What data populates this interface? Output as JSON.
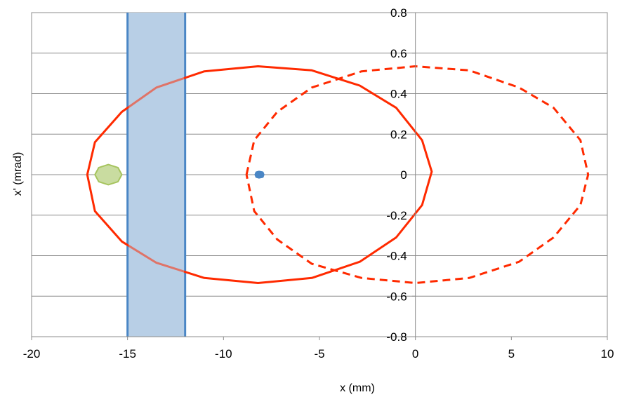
{
  "chart_data": {
    "type": "scatter",
    "xlabel": "x (mm)",
    "ylabel": "x' (mrad)",
    "xlim": [
      -20,
      10
    ],
    "ylim": [
      -0.8,
      0.8
    ],
    "x_ticks": [
      -20,
      -15,
      -10,
      -5,
      0,
      5,
      10
    ],
    "x_tick_labels": [
      "-20",
      "-15",
      "-10",
      "-5",
      "0",
      "5",
      "10"
    ],
    "y_ticks": [
      0.8,
      0.6,
      0.4,
      0.2,
      0,
      -0.2,
      -0.4,
      -0.6,
      -0.8
    ],
    "y_tick_labels": [
      "0.8",
      "0.6",
      "0.4",
      "0.2",
      "0",
      "-0.2",
      "-0.4",
      "-0.6",
      "-0.8"
    ],
    "grid": true,
    "shaded_band": {
      "x_range": [
        -15,
        -12
      ],
      "fill": "#b9cfe6",
      "edge": "#4a86c5"
    },
    "series": [
      {
        "style": "solid",
        "color": "#ff2a00",
        "points": [
          [
            -17.1,
            0.0
          ],
          [
            -16.7,
            0.16
          ],
          [
            -15.3,
            0.31
          ],
          [
            -13.5,
            0.43
          ],
          [
            -11.0,
            0.51
          ],
          [
            -8.2,
            0.535
          ],
          [
            -5.4,
            0.515
          ],
          [
            -2.9,
            0.44
          ],
          [
            -1.0,
            0.33
          ],
          [
            0.35,
            0.17
          ],
          [
            0.85,
            0.015
          ],
          [
            0.35,
            -0.15
          ],
          [
            -1.0,
            -0.31
          ],
          [
            -2.9,
            -0.43
          ],
          [
            -5.4,
            -0.51
          ],
          [
            -8.2,
            -0.535
          ],
          [
            -11.0,
            -0.51
          ],
          [
            -13.5,
            -0.435
          ],
          [
            -15.3,
            -0.33
          ],
          [
            -16.7,
            -0.18
          ],
          [
            -17.1,
            0.0
          ]
        ]
      },
      {
        "style": "dashed",
        "color": "#ff2a00",
        "points": [
          [
            -8.8,
            0.0
          ],
          [
            -8.4,
            0.17
          ],
          [
            -7.2,
            0.31
          ],
          [
            -5.4,
            0.43
          ],
          [
            -2.8,
            0.51
          ],
          [
            0.0,
            0.535
          ],
          [
            2.8,
            0.515
          ],
          [
            5.4,
            0.43
          ],
          [
            7.2,
            0.33
          ],
          [
            8.6,
            0.17
          ],
          [
            9.0,
            0.0
          ],
          [
            8.6,
            -0.15
          ],
          [
            7.2,
            -0.31
          ],
          [
            5.4,
            -0.43
          ],
          [
            2.8,
            -0.51
          ],
          [
            0.0,
            -0.535
          ],
          [
            -2.8,
            -0.51
          ],
          [
            -5.4,
            -0.44
          ],
          [
            -7.2,
            -0.32
          ],
          [
            -8.4,
            -0.18
          ],
          [
            -8.8,
            0.0
          ]
        ]
      },
      {
        "style": "filled",
        "color": "#a6c45e",
        "fill": "#c9dca0",
        "points": [
          [
            -16.7,
            0.0
          ],
          [
            -16.5,
            0.035
          ],
          [
            -16.0,
            0.05
          ],
          [
            -15.5,
            0.035
          ],
          [
            -15.3,
            0.0
          ],
          [
            -15.5,
            -0.035
          ],
          [
            -16.0,
            -0.05
          ],
          [
            -16.5,
            -0.035
          ],
          [
            -16.7,
            0.0
          ]
        ]
      },
      {
        "style": "filled",
        "color": "#4a86c5",
        "fill": "#4a86c5",
        "points": [
          [
            -8.35,
            0.0
          ],
          [
            -8.3,
            0.012
          ],
          [
            -8.15,
            0.016
          ],
          [
            -7.95,
            0.012
          ],
          [
            -7.9,
            0.0
          ],
          [
            -7.95,
            -0.012
          ],
          [
            -8.15,
            -0.016
          ],
          [
            -8.3,
            -0.012
          ],
          [
            -8.35,
            0.0
          ]
        ]
      }
    ]
  }
}
